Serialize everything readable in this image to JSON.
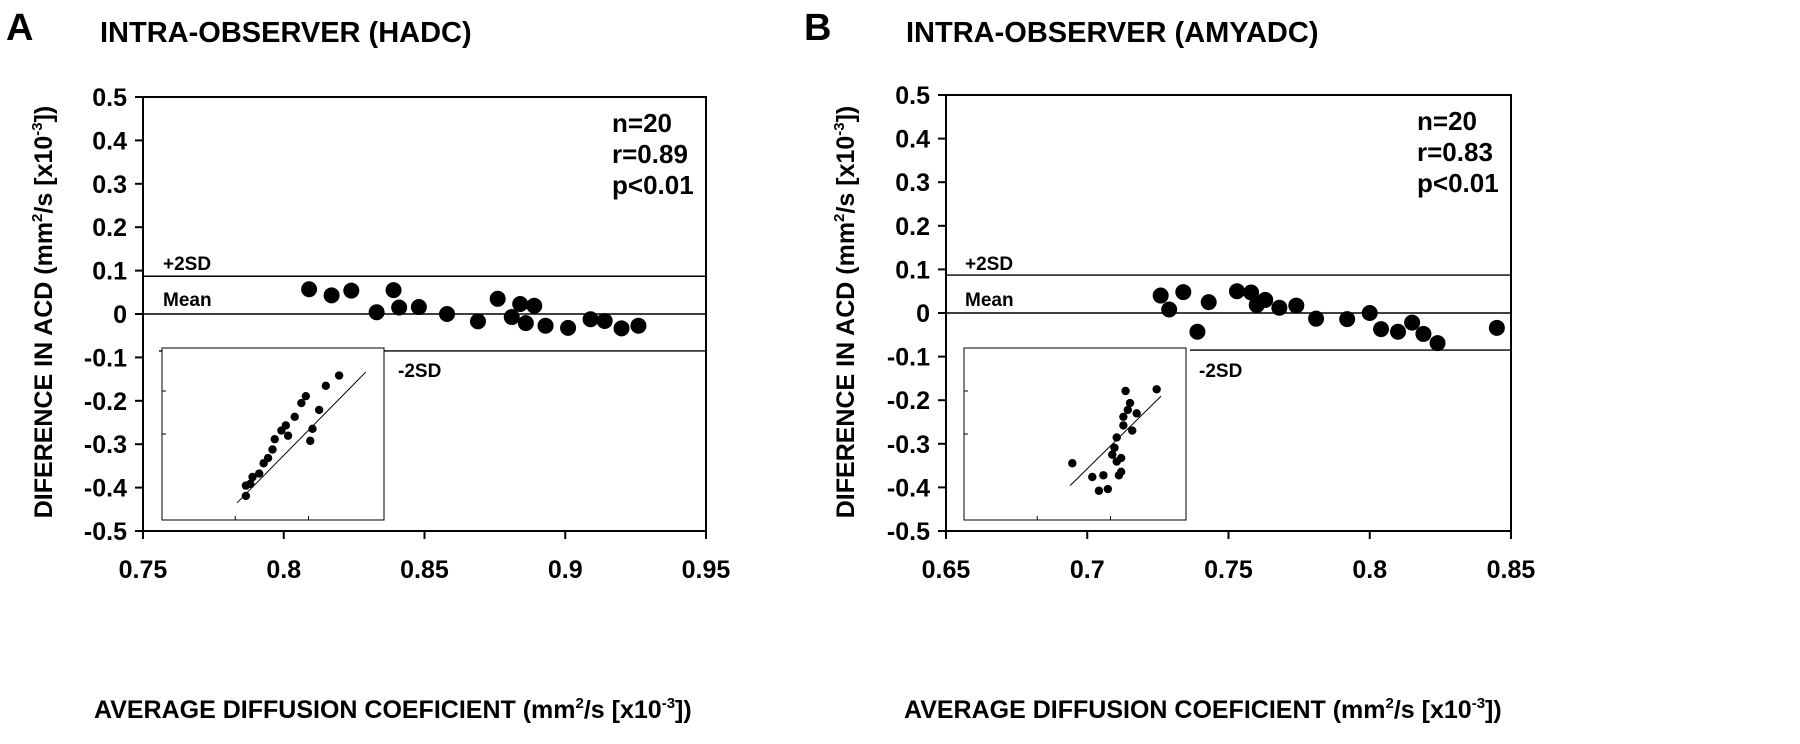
{
  "panels": [
    {
      "letter": "A",
      "title": "INTRA-OBSERVER (HADC)",
      "xlabel_main": "AVERAGE DIFFUSION COEFICIENT (mm",
      "xlabel_sup": "2",
      "xlabel_mid": "/s [x10",
      "xlabel_sup2": "-3",
      "xlabel_end": "])",
      "ylabel_main": "DIFERENCE IN ACD  (mm",
      "ylabel_sup": "2",
      "ylabel_mid": "/s [x10",
      "ylabel_sup2": "-3",
      "ylabel_end": "])",
      "stats": [
        "n=20",
        "r=0.89",
        "p<0.01"
      ],
      "labels": {
        "plus2sd": "+2SD",
        "mean": "Mean",
        "minus2sd": "-2SD"
      }
    },
    {
      "letter": "B",
      "title": "INTRA-OBSERVER (AMYADC)",
      "xlabel_main": "AVERAGE DIFFUSION COEFICIENT (mm",
      "xlabel_sup": "2",
      "xlabel_mid": "/s [x10",
      "xlabel_sup2": "-3",
      "xlabel_end": "])",
      "ylabel_main": "DIFERENCE IN ACD  (mm",
      "ylabel_sup": "2",
      "ylabel_mid": "/s [x10",
      "ylabel_sup2": "-3",
      "ylabel_end": "])",
      "stats": [
        "n=20",
        "r=0.83",
        "p<0.01"
      ],
      "labels": {
        "plus2sd": "+2SD",
        "mean": "Mean",
        "minus2sd": "-2SD"
      }
    }
  ],
  "chart_data": [
    {
      "type": "scatter",
      "title": "INTRA-OBSERVER (HADC)",
      "xlabel": "AVERAGE DIFFUSION COEFICIENT (mm2/s [x10-3])",
      "ylabel": "DIFERENCE IN ACD  (mm2/s [x10-3])",
      "xlim": [
        0.75,
        0.95
      ],
      "ylim": [
        -0.5,
        0.5
      ],
      "xticks": [
        "0.75",
        "0.8",
        "0.85",
        "0.9",
        "0.95"
      ],
      "yticks": [
        "0.5",
        "0.4",
        "0.3",
        "0.2",
        "0.1",
        "0",
        "-0.1",
        "-0.2",
        "-0.3",
        "-0.4",
        "-0.5"
      ],
      "reference_lines": [
        {
          "label": "+2SD",
          "y": 0.087
        },
        {
          "label": "Mean",
          "y": 0.0
        },
        {
          "label": "-2SD",
          "y": -0.085
        }
      ],
      "points": [
        {
          "x": 0.809,
          "y": 0.057
        },
        {
          "x": 0.817,
          "y": 0.043
        },
        {
          "x": 0.824,
          "y": 0.054
        },
        {
          "x": 0.833,
          "y": 0.004
        },
        {
          "x": 0.839,
          "y": 0.055
        },
        {
          "x": 0.841,
          "y": 0.015
        },
        {
          "x": 0.848,
          "y": 0.016
        },
        {
          "x": 0.858,
          "y": 0.0
        },
        {
          "x": 0.869,
          "y": -0.017
        },
        {
          "x": 0.876,
          "y": 0.035
        },
        {
          "x": 0.881,
          "y": -0.007
        },
        {
          "x": 0.884,
          "y": 0.023
        },
        {
          "x": 0.886,
          "y": -0.021
        },
        {
          "x": 0.889,
          "y": 0.019
        },
        {
          "x": 0.893,
          "y": -0.027
        },
        {
          "x": 0.901,
          "y": -0.032
        },
        {
          "x": 0.909,
          "y": -0.012
        },
        {
          "x": 0.914,
          "y": -0.016
        },
        {
          "x": 0.92,
          "y": -0.033
        },
        {
          "x": 0.926,
          "y": -0.027
        }
      ],
      "inset": {
        "type": "scatter",
        "points": [
          {
            "x": 0.04,
            "y": 0.14
          },
          {
            "x": 0.04,
            "y": 0.2
          },
          {
            "x": 0.06,
            "y": 0.21
          },
          {
            "x": 0.07,
            "y": 0.25
          },
          {
            "x": 0.1,
            "y": 0.27
          },
          {
            "x": 0.12,
            "y": 0.33
          },
          {
            "x": 0.14,
            "y": 0.36
          },
          {
            "x": 0.16,
            "y": 0.41
          },
          {
            "x": 0.17,
            "y": 0.47
          },
          {
            "x": 0.2,
            "y": 0.52
          },
          {
            "x": 0.22,
            "y": 0.55
          },
          {
            "x": 0.23,
            "y": 0.49
          },
          {
            "x": 0.26,
            "y": 0.6
          },
          {
            "x": 0.29,
            "y": 0.68
          },
          {
            "x": 0.31,
            "y": 0.72
          },
          {
            "x": 0.33,
            "y": 0.46
          },
          {
            "x": 0.34,
            "y": 0.53
          },
          {
            "x": 0.37,
            "y": 0.64
          },
          {
            "x": 0.4,
            "y": 0.78
          },
          {
            "x": 0.46,
            "y": 0.84
          }
        ],
        "fit_line": [
          [
            0.0,
            0.1
          ],
          [
            0.58,
            0.86
          ]
        ]
      }
    },
    {
      "type": "scatter",
      "title": "INTRA-OBSERVER (AMYADC)",
      "xlabel": "AVERAGE DIFFUSION COEFICIENT (mm2/s [x10-3])",
      "ylabel": "DIFERENCE IN ACD  (mm2/s [x10-3])",
      "xlim": [
        0.65,
        0.85
      ],
      "ylim": [
        -0.5,
        0.5
      ],
      "xticks": [
        "0.65",
        "0.7",
        "0.75",
        "0.8",
        "0.85"
      ],
      "yticks": [
        "0.5",
        "0.4",
        "0.3",
        "0.2",
        "0.1",
        "0",
        "-0.1",
        "-0.2",
        "-0.3",
        "-0.4",
        "-0.5"
      ],
      "reference_lines": [
        {
          "label": "+2SD",
          "y": 0.087
        },
        {
          "label": "Mean",
          "y": 0.0
        },
        {
          "label": "-2SD",
          "y": -0.085
        }
      ],
      "points": [
        {
          "x": 0.726,
          "y": 0.04
        },
        {
          "x": 0.729,
          "y": 0.008
        },
        {
          "x": 0.734,
          "y": 0.048
        },
        {
          "x": 0.739,
          "y": -0.043
        },
        {
          "x": 0.743,
          "y": 0.025
        },
        {
          "x": 0.753,
          "y": 0.05
        },
        {
          "x": 0.758,
          "y": 0.047
        },
        {
          "x": 0.76,
          "y": 0.018
        },
        {
          "x": 0.763,
          "y": 0.03
        },
        {
          "x": 0.768,
          "y": 0.012
        },
        {
          "x": 0.774,
          "y": 0.017
        },
        {
          "x": 0.781,
          "y": -0.013
        },
        {
          "x": 0.792,
          "y": -0.014
        },
        {
          "x": 0.8,
          "y": 0.0
        },
        {
          "x": 0.804,
          "y": -0.037
        },
        {
          "x": 0.81,
          "y": -0.043
        },
        {
          "x": 0.815,
          "y": -0.022
        },
        {
          "x": 0.819,
          "y": -0.048
        },
        {
          "x": 0.824,
          "y": -0.069
        },
        {
          "x": 0.845,
          "y": -0.034
        }
      ],
      "inset": {
        "type": "scatter",
        "points": [
          {
            "x": 0.15,
            "y": 0.33
          },
          {
            "x": 0.24,
            "y": 0.25
          },
          {
            "x": 0.27,
            "y": 0.17
          },
          {
            "x": 0.29,
            "y": 0.26
          },
          {
            "x": 0.31,
            "y": 0.18
          },
          {
            "x": 0.33,
            "y": 0.38
          },
          {
            "x": 0.34,
            "y": 0.42
          },
          {
            "x": 0.35,
            "y": 0.34
          },
          {
            "x": 0.35,
            "y": 0.48
          },
          {
            "x": 0.36,
            "y": 0.26
          },
          {
            "x": 0.37,
            "y": 0.28
          },
          {
            "x": 0.37,
            "y": 0.36
          },
          {
            "x": 0.38,
            "y": 0.55
          },
          {
            "x": 0.38,
            "y": 0.6
          },
          {
            "x": 0.39,
            "y": 0.75
          },
          {
            "x": 0.4,
            "y": 0.64
          },
          {
            "x": 0.41,
            "y": 0.68
          },
          {
            "x": 0.42,
            "y": 0.52
          },
          {
            "x": 0.44,
            "y": 0.62
          },
          {
            "x": 0.53,
            "y": 0.76
          }
        ],
        "fit_line": [
          [
            0.14,
            0.2
          ],
          [
            0.55,
            0.72
          ]
        ]
      }
    }
  ]
}
